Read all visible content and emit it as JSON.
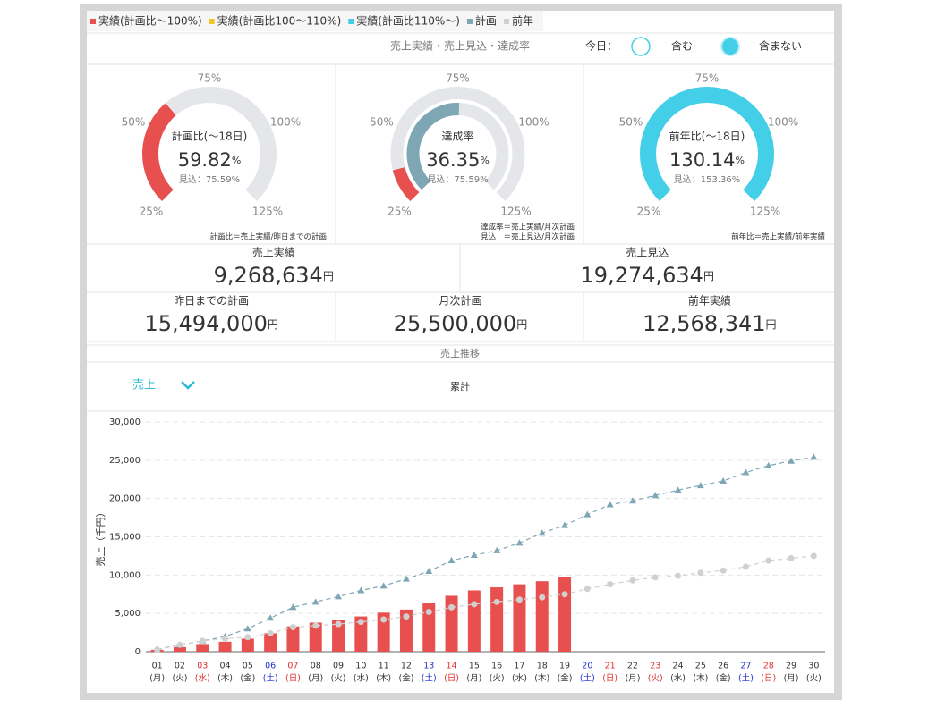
{
  "legend": [
    {
      "name": "実績(計画比～100%)",
      "color": "#e8504f"
    },
    {
      "name": "実績(計画比100～110%)",
      "color": "#f2c524"
    },
    {
      "name": "実績(計画比110%～)",
      "color": "#43cfe8"
    },
    {
      "name": "計画",
      "color": "#7ea6b4"
    },
    {
      "name": "前年",
      "color": "#d0d0d0"
    }
  ],
  "header": {
    "title": "売上実績・売上見込・達成率",
    "today_label": "今日：",
    "options": [
      {
        "label": "含む",
        "selected": false
      },
      {
        "label": "含まない",
        "selected": true
      }
    ]
  },
  "gauge_scale": [
    {
      "value": 25,
      "label": "25%"
    },
    {
      "value": 50,
      "label": "50%"
    },
    {
      "value": 75,
      "label": "75%"
    },
    {
      "value": 100,
      "label": "100%"
    },
    {
      "value": 125,
      "label": "125%"
    }
  ],
  "gauges": [
    {
      "title": "計画比(～18日)",
      "value": 59.82,
      "unit": "%",
      "forecast_label": "見込：",
      "forecast": 75.59,
      "forecast_unit": "%",
      "color": "#e8504f",
      "notes": [
        "計画比＝売上実績/昨日までの計画"
      ]
    },
    {
      "title": "達成率",
      "value": 36.35,
      "unit": "%",
      "forecast_label": "見込：",
      "forecast": 75.59,
      "forecast_unit": "%",
      "color": "#e8504f",
      "inner_color": "#7ea6b4",
      "notes": [
        "達成率＝売上実績/月次計画",
        "見込　＝売上見込/月次計画"
      ]
    },
    {
      "title": "前年比(～18日)",
      "value": 130.14,
      "unit": "%",
      "forecast_label": "見込：",
      "forecast": 153.36,
      "forecast_unit": "%",
      "color": "#43cfe8",
      "notes": [
        "前年比＝売上実績/前年実績"
      ]
    }
  ],
  "kpis": [
    [
      {
        "label": "売上実績",
        "amount": "9,268,634",
        "unit": "円"
      },
      {
        "label": "売上見込",
        "amount": "19,274,634",
        "unit": "円"
      }
    ],
    [
      {
        "label": "昨日までの計画",
        "amount": "15,494,000",
        "unit": "円"
      },
      {
        "label": "月次計画",
        "amount": "25,500,000",
        "unit": "円"
      },
      {
        "label": "前年実績",
        "amount": "12,568,341",
        "unit": "円"
      }
    ]
  ],
  "section_title": "売上推移",
  "controls": {
    "metric": "売上",
    "mode": "累計"
  },
  "chart": {
    "type": "bar_line",
    "y_label": "売上（千円）",
    "ylim": [
      0,
      30000
    ],
    "yticks": [
      {
        "value": 0,
        "label": "0"
      },
      {
        "value": 5000,
        "label": "5,000"
      },
      {
        "value": 10000,
        "label": "10,000"
      },
      {
        "value": 15000,
        "label": "15,000"
      },
      {
        "value": 20000,
        "label": "20,000"
      },
      {
        "value": 25000,
        "label": "25,000"
      },
      {
        "value": 30000,
        "label": "30,000"
      }
    ],
    "grid": true,
    "categories": [
      "01",
      "02",
      "03",
      "04",
      "05",
      "06",
      "07",
      "08",
      "09",
      "10",
      "11",
      "12",
      "13",
      "14",
      "15",
      "16",
      "17",
      "18",
      "19",
      "20",
      "21",
      "22",
      "23",
      "24",
      "25",
      "26",
      "27",
      "28",
      "29",
      "30"
    ],
    "weekdays": [
      "(月)",
      "(火)",
      "(水)",
      "(木)",
      "(金)",
      "(土)",
      "(日)",
      "(月)",
      "(火)",
      "(水)",
      "(木)",
      "(金)",
      "(土)",
      "(日)",
      "(月)",
      "(火)",
      "(水)",
      "(木)",
      "(金)",
      "(土)",
      "(日)",
      "(月)",
      "(火)",
      "(水)",
      "(木)",
      "(金)",
      "(土)",
      "(日)",
      "(月)",
      "(火)"
    ],
    "day_colors": [
      "#333",
      "#333",
      "#e03030",
      "#333",
      "#333",
      "#2030d0",
      "#e03030",
      "#333",
      "#333",
      "#333",
      "#333",
      "#333",
      "#2030d0",
      "#e03030",
      "#333",
      "#333",
      "#333",
      "#333",
      "#333",
      "#2030d0",
      "#e03030",
      "#333",
      "#e03030",
      "#333",
      "#333",
      "#333",
      "#2030d0",
      "#e03030",
      "#333",
      "#333"
    ],
    "series": [
      {
        "kind": "bar",
        "color": "#e8504f",
        "values": [
          250,
          600,
          1000,
          1300,
          1700,
          2400,
          3300,
          3800,
          4200,
          4600,
          5100,
          5500,
          6300,
          7300,
          8000,
          8400,
          8800,
          9200,
          9700,
          null,
          null,
          null,
          null,
          null,
          null,
          null,
          null,
          null,
          null,
          null
        ]
      },
      {
        "kind": "line",
        "marker": "triangle",
        "color": "#7ea6b4",
        "values": [
          300,
          900,
          1400,
          2000,
          3000,
          4400,
          5800,
          6500,
          7200,
          8000,
          8600,
          9500,
          10500,
          11900,
          12600,
          13200,
          14200,
          15500,
          16500,
          17900,
          19200,
          19700,
          20400,
          21100,
          21700,
          22300,
          23400,
          24300,
          24900,
          25400
        ]
      },
      {
        "kind": "line",
        "marker": "circle",
        "color": "#d0d0d0",
        "values": [
          250,
          900,
          1400,
          1700,
          1900,
          2400,
          3200,
          3400,
          3600,
          3900,
          4200,
          4600,
          5200,
          5800,
          6200,
          6500,
          6800,
          7100,
          7500,
          8200,
          8800,
          9300,
          9700,
          9900,
          10300,
          10600,
          11100,
          11900,
          12200,
          12500
        ]
      }
    ]
  }
}
